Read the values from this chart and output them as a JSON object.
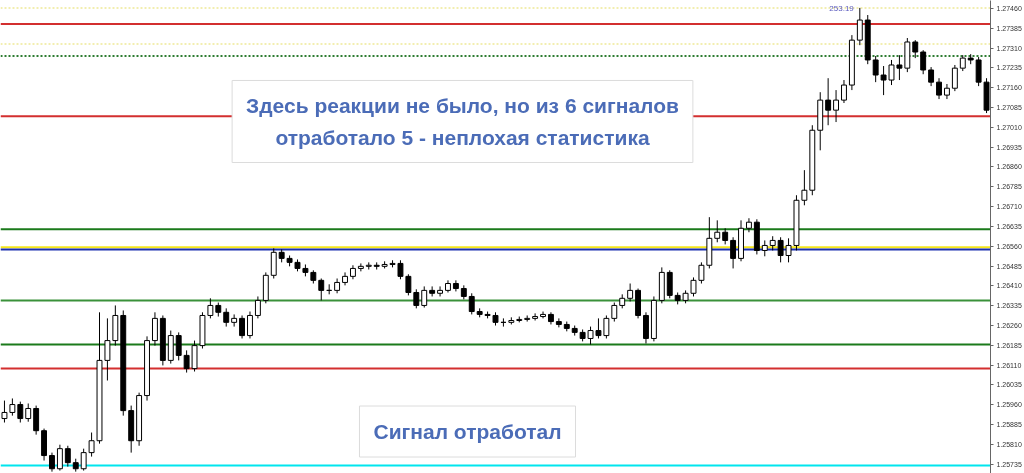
{
  "chart_data": {
    "type": "candlestick",
    "color": "#000000",
    "categories": [
      null,
      null,
      null,
      null,
      null,
      null,
      null,
      null,
      null,
      null,
      null,
      null,
      null,
      null,
      null,
      null,
      null,
      null,
      null,
      null,
      null,
      null,
      null,
      null,
      null,
      null,
      null,
      null,
      null,
      null,
      null,
      null,
      null,
      null,
      null,
      null,
      null,
      null,
      null,
      null,
      null,
      null,
      null,
      null,
      null,
      null,
      null,
      null,
      null,
      null,
      null,
      null,
      null,
      null,
      null,
      null,
      null,
      null,
      null,
      null,
      null,
      null,
      null,
      null,
      null,
      null,
      null,
      null,
      null,
      null,
      null,
      null,
      null,
      null,
      null,
      null,
      null,
      null,
      null,
      null,
      null,
      null,
      null,
      null,
      null,
      null,
      null,
      null,
      null,
      null,
      null,
      null,
      null,
      null,
      null,
      null,
      null,
      null,
      null,
      null,
      null,
      null,
      null,
      null,
      null,
      null,
      null,
      null,
      null,
      null,
      null,
      null,
      null,
      null,
      null,
      null,
      null,
      null,
      null,
      null,
      null,
      null,
      null,
      null,
      null
    ],
    "ohlc": [
      [
        1.25908,
        1.25976,
        1.25893,
        1.25931
      ],
      [
        1.25931,
        1.25984,
        1.25919,
        1.25961
      ],
      [
        1.25961,
        1.25972,
        1.25893,
        1.25908
      ],
      [
        1.25908,
        1.25965,
        1.25896,
        1.25946
      ],
      [
        1.25946,
        1.25957,
        1.25847,
        1.25862
      ],
      [
        1.25862,
        1.2587,
        1.25749,
        1.25768
      ],
      [
        1.25768,
        1.25779,
        1.25707,
        1.25718
      ],
      [
        1.25718,
        1.25809,
        1.25711,
        1.25794
      ],
      [
        1.25794,
        1.25805,
        1.25726,
        1.25741
      ],
      [
        1.25741,
        1.25756,
        1.25707,
        1.25718
      ],
      [
        1.25718,
        1.25794,
        1.25711,
        1.25779
      ],
      [
        1.25779,
        1.25855,
        1.25764,
        1.25824
      ],
      [
        1.25824,
        1.2631,
        1.25813,
        1.26128
      ],
      [
        1.26128,
        1.26287,
        1.26052,
        1.26203
      ],
      [
        1.26203,
        1.26336,
        1.26184,
        1.26298
      ],
      [
        1.26298,
        1.26317,
        1.25919,
        1.25938
      ],
      [
        1.25938,
        1.25957,
        1.25779,
        1.25824
      ],
      [
        1.25824,
        1.26006,
        1.25805,
        1.25995
      ],
      [
        1.25995,
        1.26219,
        1.25976,
        1.26203
      ],
      [
        1.26203,
        1.2631,
        1.26184,
        1.26287
      ],
      [
        1.26287,
        1.26298,
        1.26109,
        1.26128
      ],
      [
        1.26128,
        1.26241,
        1.26116,
        1.26222
      ],
      [
        1.26222,
        1.26234,
        1.26128,
        1.26147
      ],
      [
        1.26147,
        1.26166,
        1.26082,
        1.26097
      ],
      [
        1.26097,
        1.26203,
        1.26086,
        1.26184
      ],
      [
        1.26184,
        1.2631,
        1.26173,
        1.26298
      ],
      [
        1.26298,
        1.26363,
        1.26287,
        1.26336
      ],
      [
        1.26336,
        1.26347,
        1.26294,
        1.2631
      ],
      [
        1.2631,
        1.26325,
        1.26256,
        1.26272
      ],
      [
        1.26272,
        1.26302,
        1.26256,
        1.26287
      ],
      [
        1.26287,
        1.26298,
        1.26211,
        1.26222
      ],
      [
        1.26222,
        1.26313,
        1.26211,
        1.26298
      ],
      [
        1.26298,
        1.2637,
        1.26287,
        1.26355
      ],
      [
        1.26355,
        1.26461,
        1.26344,
        1.2645
      ],
      [
        1.2645,
        1.26552,
        1.26438,
        1.26537
      ],
      [
        1.26537,
        1.26548,
        1.26499,
        1.26514
      ],
      [
        1.26514,
        1.26525,
        1.26484,
        1.26499
      ],
      [
        1.26499,
        1.2651,
        1.26465,
        1.26476
      ],
      [
        1.26476,
        1.26491,
        1.26446,
        1.26461
      ],
      [
        1.26461,
        1.26469,
        1.26419,
        1.26431
      ],
      [
        1.26431,
        1.26438,
        1.26355,
        1.26393
      ],
      [
        1.26393,
        1.26416,
        1.26378,
        1.26393
      ],
      [
        1.26393,
        1.26438,
        1.26382,
        1.26423
      ],
      [
        1.26423,
        1.26461,
        1.26412,
        1.26446
      ],
      [
        1.26446,
        1.26488,
        1.26435,
        1.26476
      ],
      [
        1.26476,
        1.26495,
        1.26465,
        1.26484
      ],
      [
        1.26484,
        1.26499,
        1.26472,
        1.26488
      ],
      [
        1.26488,
        1.26499,
        1.26472,
        1.26484
      ],
      [
        1.26484,
        1.26503,
        1.26476,
        1.26491
      ],
      [
        1.26491,
        1.26507,
        1.2648,
        1.26495
      ],
      [
        1.26495,
        1.26507,
        1.26435,
        1.26446
      ],
      [
        1.26446,
        1.26454,
        1.26374,
        1.26385
      ],
      [
        1.26385,
        1.26397,
        1.26325,
        1.26336
      ],
      [
        1.26336,
        1.26408,
        1.26328,
        1.26393
      ],
      [
        1.26393,
        1.26408,
        1.2637,
        1.26382
      ],
      [
        1.26382,
        1.26408,
        1.2637,
        1.26393
      ],
      [
        1.26393,
        1.26431,
        1.26385,
        1.26419
      ],
      [
        1.26419,
        1.26431,
        1.26389,
        1.264
      ],
      [
        1.264,
        1.26412,
        1.26359,
        1.2637
      ],
      [
        1.2637,
        1.26382,
        1.26302,
        1.26313
      ],
      [
        1.26313,
        1.26325,
        1.26291,
        1.26302
      ],
      [
        1.26302,
        1.26313,
        1.26287,
        1.26298
      ],
      [
        1.26298,
        1.2631,
        1.2626,
        1.26272
      ],
      [
        1.26272,
        1.26287,
        1.26256,
        1.26272
      ],
      [
        1.26272,
        1.26291,
        1.26264,
        1.26279
      ],
      [
        1.26279,
        1.26294,
        1.26272,
        1.26283
      ],
      [
        1.26283,
        1.26298,
        1.26275,
        1.26287
      ],
      [
        1.26287,
        1.26306,
        1.26279,
        1.26294
      ],
      [
        1.26294,
        1.26313,
        1.26287,
        1.26302
      ],
      [
        1.26302,
        1.2631,
        1.26264,
        1.26275
      ],
      [
        1.26275,
        1.26287,
        1.26253,
        1.26264
      ],
      [
        1.26264,
        1.26275,
        1.26238,
        1.26249
      ],
      [
        1.26249,
        1.2626,
        1.26222,
        1.26234
      ],
      [
        1.26234,
        1.26245,
        1.262,
        1.26211
      ],
      [
        1.26211,
        1.26256,
        1.26188,
        1.26241
      ],
      [
        1.26241,
        1.26287,
        1.26211,
        1.26222
      ],
      [
        1.26222,
        1.26298,
        1.26211,
        1.26287
      ],
      [
        1.26287,
        1.26347,
        1.26275,
        1.26336
      ],
      [
        1.26336,
        1.26378,
        1.26325,
        1.26363
      ],
      [
        1.26363,
        1.26419,
        1.26351,
        1.26393
      ],
      [
        1.26393,
        1.264,
        1.26287,
        1.26298
      ],
      [
        1.26298,
        1.2631,
        1.26192,
        1.26211
      ],
      [
        1.26211,
        1.2637,
        1.262,
        1.26355
      ],
      [
        1.26355,
        1.2648,
        1.26344,
        1.26461
      ],
      [
        1.26461,
        1.26469,
        1.26363,
        1.26374
      ],
      [
        1.26374,
        1.26385,
        1.2634,
        1.26355
      ],
      [
        1.26355,
        1.26393,
        1.26344,
        1.26382
      ],
      [
        1.26382,
        1.26442,
        1.2637,
        1.26431
      ],
      [
        1.26431,
        1.26499,
        1.26419,
        1.26488
      ],
      [
        1.26488,
        1.2667,
        1.26476,
        1.2659
      ],
      [
        1.2659,
        1.26658,
        1.26575,
        1.26613
      ],
      [
        1.26613,
        1.26628,
        1.26567,
        1.26582
      ],
      [
        1.26582,
        1.26594,
        1.26476,
        1.26514
      ],
      [
        1.26514,
        1.26658,
        1.26503,
        1.26628
      ],
      [
        1.26628,
        1.26666,
        1.26613,
        1.26651
      ],
      [
        1.26651,
        1.26662,
        1.26529,
        1.26544
      ],
      [
        1.26544,
        1.26582,
        1.26522,
        1.26563
      ],
      [
        1.26563,
        1.26598,
        1.26544,
        1.26582
      ],
      [
        1.26582,
        1.26594,
        1.26499,
        1.26525
      ],
      [
        1.26525,
        1.2659,
        1.26499,
        1.26563
      ],
      [
        1.26563,
        1.26753,
        1.26544,
        1.26734
      ],
      [
        1.26734,
        1.26848,
        1.26715,
        1.26772
      ],
      [
        1.26772,
        1.27018,
        1.26753,
        1.26999
      ],
      [
        1.26999,
        1.27143,
        1.26923,
        1.27113
      ],
      [
        1.27113,
        1.27196,
        1.27018,
        1.27075
      ],
      [
        1.27075,
        1.27151,
        1.2703,
        1.27113
      ],
      [
        1.27113,
        1.27189,
        1.27102,
        1.2717
      ],
      [
        1.2717,
        1.27359,
        1.27151,
        1.2734
      ],
      [
        1.2734,
        1.27462,
        1.27321,
        1.27416
      ],
      [
        1.27416,
        1.27435,
        1.27249,
        1.27265
      ],
      [
        1.27265,
        1.2728,
        1.27181,
        1.27208
      ],
      [
        1.27208,
        1.27242,
        1.27132,
        1.27189
      ],
      [
        1.27189,
        1.27265,
        1.2717,
        1.27246
      ],
      [
        1.27246,
        1.27283,
        1.27189,
        1.27234
      ],
      [
        1.27234,
        1.27348,
        1.27219,
        1.27333
      ],
      [
        1.27333,
        1.2734,
        1.27272,
        1.27295
      ],
      [
        1.27295,
        1.27302,
        1.27211,
        1.27227
      ],
      [
        1.27227,
        1.27238,
        1.27166,
        1.27181
      ],
      [
        1.27181,
        1.27196,
        1.27117,
        1.27132
      ],
      [
        1.27132,
        1.27174,
        1.27117,
        1.27158
      ],
      [
        1.27158,
        1.27246,
        1.27147,
        1.27234
      ],
      [
        1.27234,
        1.27283,
        1.27223,
        1.27272
      ],
      [
        1.27272,
        1.27287,
        1.27249,
        1.27265
      ],
      [
        1.27265,
        1.27276,
        1.27166,
        1.27181
      ],
      [
        1.27181,
        1.27196,
        1.27064,
        1.27075
      ]
    ],
    "ylim": [
      1.257,
      1.2749
    ],
    "yticks": [
      {
        "value": 1.2746,
        "label": "1.27460"
      },
      1.27385,
      {
        "value": 1.2731,
        "label": "1.27310"
      },
      1.27235,
      {
        "value": 1.2716,
        "label": "1.27160"
      },
      1.27085,
      {
        "value": 1.2701,
        "label": "1.27010"
      },
      1.26935,
      {
        "value": 1.2686,
        "label": "1.26860"
      },
      1.26785,
      {
        "value": 1.2671,
        "label": "1.26710"
      },
      1.26635,
      {
        "value": 1.2656,
        "label": "1.26560"
      },
      1.26485,
      {
        "value": 1.2641,
        "label": "1.26410"
      },
      1.26335,
      {
        "value": 1.2626,
        "label": "1.26260"
      },
      1.26185,
      {
        "value": 1.2611,
        "label": "1.26110"
      },
      1.26035,
      {
        "value": 1.2596,
        "label": "1.25960"
      },
      1.25885,
      {
        "value": 1.2581,
        "label": "1.25810"
      },
      1.25735
    ],
    "tick_labels": "y",
    "ref_lines": [
      {
        "axis": "y",
        "value": 1.27462,
        "color": "#f2eeb0",
        "line_style": "dotted"
      },
      {
        "axis": "y",
        "value": 1.27401,
        "color": "#d32f2f"
      },
      {
        "axis": "y",
        "value": 1.27325,
        "color": "#f2eeb0",
        "line_style": "dotted"
      },
      {
        "axis": "y",
        "value": 1.2728,
        "color": "#2e7d32",
        "line_style": "dotted"
      },
      {
        "axis": "y",
        "value": 1.27052,
        "color": "#d32f2f"
      },
      {
        "axis": "y",
        "value": 1.26624,
        "color": "#1b7a1b"
      },
      {
        "axis": "y",
        "value": 1.26556,
        "color": "#f5e61a"
      },
      {
        "axis": "y",
        "value": 1.26548,
        "color": "#1a2fb0"
      },
      {
        "axis": "y",
        "value": 1.26355,
        "color": "#3a913a"
      },
      {
        "axis": "y",
        "value": 1.26188,
        "color": "#1b7a1b"
      },
      {
        "axis": "y",
        "value": 1.26097,
        "color": "#d32f2f"
      },
      {
        "axis": "y",
        "value": 1.2573,
        "color": "#00e5ee"
      }
    ],
    "annotations": [
      {
        "text": "253.19",
        "y": 1.2746
      },
      "Здесь реакции не было, но из 6 сигналов отработало 5 - неплохая статистика",
      "Сигнал отработал"
    ]
  }
}
